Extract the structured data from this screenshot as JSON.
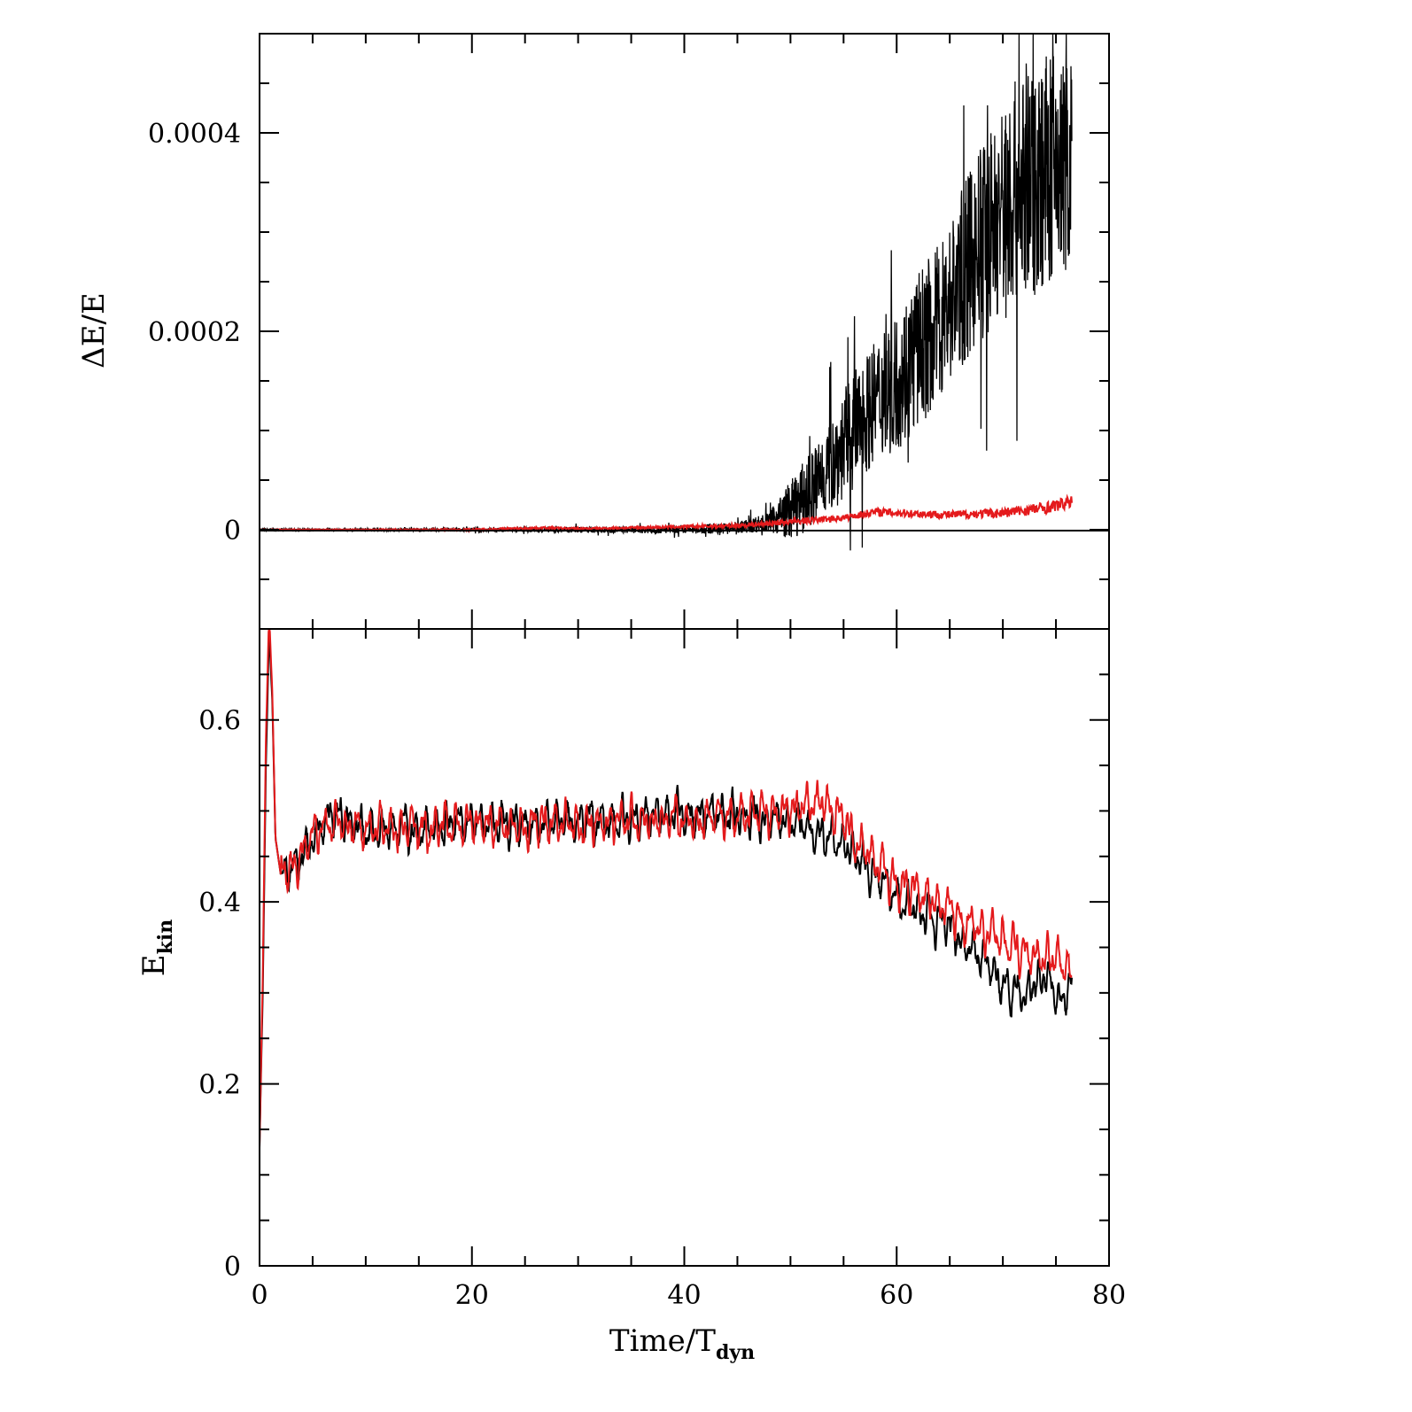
{
  "chart_data": [
    {
      "type": "line",
      "panel": "top",
      "ylabel": "ΔE/E",
      "xlim": [
        0,
        80
      ],
      "ylim": [
        -0.0001,
        0.0005
      ],
      "yticks": [
        0,
        0.0002,
        0.0004
      ],
      "ytick_labels": [
        "0",
        "0.0002",
        "0.0004"
      ],
      "zero_line": true,
      "series": [
        {
          "color": "#000000",
          "style": "noisy",
          "x": [
            0,
            10,
            20,
            30,
            40,
            45,
            48,
            50,
            52,
            54,
            56,
            58,
            60,
            62,
            64,
            66,
            68,
            70,
            72,
            74,
            76.5
          ],
          "mean": [
            0,
            0,
            0,
            0,
            0,
            2e-06,
            8e-06,
            2e-05,
            4e-05,
            7e-05,
            0.0001,
            0.00013,
            0.00015,
            0.00018,
            0.00021,
            0.00025,
            0.00029,
            0.00032,
            0.00035,
            0.00036,
            0.00037
          ],
          "amp": [
            1e-06,
            1e-06,
            2e-06,
            3e-06,
            4e-06,
            6e-06,
            1e-05,
            3e-05,
            4e-05,
            5e-05,
            6e-05,
            6e-05,
            7e-05,
            8e-05,
            8e-05,
            9e-05,
            0.0001,
            0.00011,
            0.00012,
            0.00012,
            0.00011
          ]
        },
        {
          "color": "#e41a1c",
          "style": "smooth",
          "x": [
            0,
            10,
            20,
            27,
            30,
            35,
            40,
            45,
            50,
            55,
            58,
            60,
            65,
            70,
            74,
            76.5
          ],
          "mean": [
            0,
            0,
            0,
            2e-06,
            1e-06,
            2e-06,
            3e-06,
            4e-06,
            8e-06,
            1.2e-05,
            1.8e-05,
            1.7e-05,
            1.5e-05,
            1.7e-05,
            2.2e-05,
            2.8e-05
          ],
          "amp": [
            5e-07,
            5e-07,
            1e-06,
            1e-06,
            1e-06,
            1e-06,
            1.5e-06,
            2e-06,
            3e-06,
            3e-06,
            4e-06,
            4e-06,
            4e-06,
            5e-06,
            6e-06,
            6e-06
          ]
        }
      ]
    },
    {
      "type": "line",
      "panel": "bottom",
      "ylabel": "E",
      "ylabel_sub": "kin",
      "xlabel": "Time/T",
      "xlabel_sub": "dyn",
      "xlim": [
        0,
        80
      ],
      "ylim": [
        0,
        0.7
      ],
      "xticks": [
        0,
        20,
        40,
        60,
        80
      ],
      "xtick_labels": [
        "0",
        "20",
        "40",
        "60",
        "80"
      ],
      "yticks": [
        0,
        0.2,
        0.4,
        0.6
      ],
      "ytick_labels": [
        "0",
        "0.2",
        "0.4",
        "0.6"
      ],
      "series": [
        {
          "color": "#000000",
          "x": [
            0,
            0.3,
            0.6,
            0.9,
            1.2,
            1.5,
            2,
            3,
            4,
            5,
            6,
            7,
            8,
            10,
            15,
            20,
            25,
            30,
            35,
            40,
            45,
            50,
            53,
            55,
            56,
            58,
            60,
            62,
            64,
            66,
            68,
            70,
            72,
            74,
            75.5,
            76.5
          ],
          "y": [
            0.13,
            0.3,
            0.55,
            0.7,
            0.62,
            0.47,
            0.43,
            0.44,
            0.45,
            0.47,
            0.49,
            0.5,
            0.49,
            0.48,
            0.48,
            0.49,
            0.485,
            0.49,
            0.49,
            0.495,
            0.495,
            0.49,
            0.47,
            0.47,
            0.45,
            0.43,
            0.41,
            0.39,
            0.38,
            0.36,
            0.34,
            0.31,
            0.3,
            0.32,
            0.29,
            0.31
          ],
          "noise": 0.022
        },
        {
          "color": "#e41a1c",
          "x": [
            0,
            0.3,
            0.6,
            0.9,
            1.2,
            1.5,
            2,
            3,
            4,
            5,
            6,
            7,
            8,
            10,
            15,
            20,
            25,
            30,
            35,
            40,
            45,
            50,
            53,
            55,
            56,
            58,
            60,
            62,
            64,
            66,
            68,
            70,
            72,
            74,
            75.5,
            76.5
          ],
          "y": [
            0.13,
            0.32,
            0.58,
            0.72,
            0.63,
            0.47,
            0.43,
            0.44,
            0.45,
            0.47,
            0.485,
            0.49,
            0.485,
            0.48,
            0.48,
            0.485,
            0.485,
            0.485,
            0.49,
            0.49,
            0.495,
            0.5,
            0.51,
            0.49,
            0.47,
            0.44,
            0.42,
            0.41,
            0.4,
            0.38,
            0.37,
            0.36,
            0.345,
            0.34,
            0.34,
            0.31
          ],
          "noise": 0.022
        }
      ]
    }
  ]
}
